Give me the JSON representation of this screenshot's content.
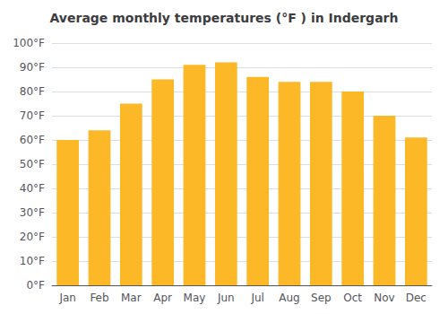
{
  "chart_data": {
    "type": "bar",
    "title": "Average monthly temperatures (°F ) in Indergarh",
    "categories": [
      "Jan",
      "Feb",
      "Mar",
      "Apr",
      "May",
      "Jun",
      "Jul",
      "Aug",
      "Sep",
      "Oct",
      "Nov",
      "Dec"
    ],
    "values": [
      60,
      64,
      75,
      85,
      91,
      92,
      86,
      84,
      84,
      80,
      70,
      61
    ],
    "color": "#FDB827",
    "ylim": [
      0,
      100
    ],
    "yticks": [
      {
        "value": 0,
        "label": "0°F"
      },
      {
        "value": 10,
        "label": "10°F"
      },
      {
        "value": 20,
        "label": "20°F"
      },
      {
        "value": 30,
        "label": "30°F"
      },
      {
        "value": 40,
        "label": "40°F"
      },
      {
        "value": 50,
        "label": "50°F"
      },
      {
        "value": 60,
        "label": "60°F"
      },
      {
        "value": 70,
        "label": "70°F"
      },
      {
        "value": 80,
        "label": "80°F"
      },
      {
        "value": 90,
        "label": "90°F"
      },
      {
        "value": 100,
        "label": "100°F"
      }
    ],
    "grid": true
  }
}
